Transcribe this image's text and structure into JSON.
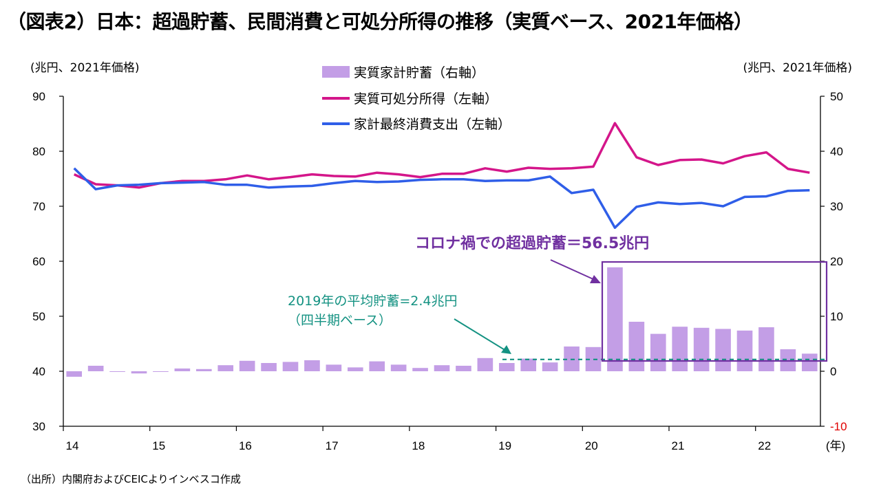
{
  "title": "（図表2）日本：超過貯蓄、民間消費と可処分所得の推移（実質ベース、2021年価格）",
  "source": "（出所）内閣府およびCEICよりインベスコ作成",
  "colors": {
    "bars": "#c39ee6",
    "income": "#d4168a",
    "consumption": "#2f5ee8",
    "highlight": "#7030a0",
    "annotation2019": "#149282",
    "negative_tick": "#e00000"
  },
  "chart_data": {
    "type": "bar+line",
    "title": "（図表2）日本：超過貯蓄、民間消費と可処分所得の推移（実質ベース、2021年価格）",
    "left_unit": "(兆円、2021年価格)",
    "right_unit": "(兆円、2021年価格)",
    "x_unit": "(年)",
    "x_tick_labels": [
      "14",
      "15",
      "16",
      "17",
      "18",
      "19",
      "20",
      "21",
      "22"
    ],
    "left_axis": {
      "ylim": [
        30,
        90
      ],
      "ticks": [
        "30",
        "40",
        "50",
        "60",
        "70",
        "80",
        "90"
      ]
    },
    "right_axis": {
      "ylim": [
        -10,
        50
      ],
      "ticks": [
        "-10",
        "0",
        "10",
        "20",
        "30",
        "40",
        "50"
      ]
    },
    "quarters": [
      "2014Q1",
      "2014Q2",
      "2014Q3",
      "2014Q4",
      "2015Q1",
      "2015Q2",
      "2015Q3",
      "2015Q4",
      "2016Q1",
      "2016Q2",
      "2016Q3",
      "2016Q4",
      "2017Q1",
      "2017Q2",
      "2017Q3",
      "2017Q4",
      "2018Q1",
      "2018Q2",
      "2018Q3",
      "2018Q4",
      "2019Q1",
      "2019Q2",
      "2019Q3",
      "2019Q4",
      "2020Q1",
      "2020Q2",
      "2020Q3",
      "2020Q4",
      "2021Q1",
      "2021Q2",
      "2021Q3",
      "2021Q4",
      "2022Q1",
      "2022Q2",
      "2022Q3"
    ],
    "series": [
      {
        "name": "実質家計貯蓄（右軸）",
        "type": "bar",
        "axis": "right",
        "values": [
          -1.0,
          1.0,
          -0.1,
          -0.4,
          -0.1,
          0.5,
          0.4,
          1.1,
          1.9,
          1.5,
          1.7,
          2.0,
          1.2,
          0.7,
          1.8,
          1.2,
          0.6,
          1.1,
          1.0,
          2.4,
          1.5,
          2.3,
          1.6,
          4.5,
          4.4,
          18.9,
          9.0,
          6.8,
          8.1,
          7.9,
          7.7,
          7.4,
          8.0,
          4.0,
          3.2
        ]
      },
      {
        "name": "実質可処分所得（左軸）",
        "type": "line",
        "axis": "left",
        "values": [
          75.8,
          74.0,
          73.8,
          73.4,
          74.2,
          74.6,
          74.6,
          74.9,
          75.6,
          74.9,
          75.3,
          75.8,
          75.5,
          75.4,
          76.1,
          75.8,
          75.3,
          75.9,
          75.9,
          76.9,
          76.3,
          77.0,
          76.8,
          76.9,
          77.2,
          85.1,
          78.9,
          77.5,
          78.4,
          78.5,
          77.8,
          79.1,
          79.8,
          76.8,
          76.1
        ]
      },
      {
        "name": "家計最終消費支出（左軸）",
        "type": "line",
        "axis": "left",
        "values": [
          76.9,
          73.1,
          73.8,
          73.9,
          74.2,
          74.3,
          74.4,
          73.9,
          73.9,
          73.4,
          73.6,
          73.7,
          74.2,
          74.6,
          74.4,
          74.5,
          74.8,
          74.9,
          74.9,
          74.6,
          74.7,
          74.7,
          75.4,
          72.4,
          73.0,
          66.1,
          69.9,
          70.7,
          70.4,
          70.6,
          70.0,
          71.7,
          71.8,
          72.8,
          72.9
        ]
      }
    ],
    "legend": [
      "実質家計貯蓄（右軸）",
      "実質可処分所得（左軸）",
      "家計最終消費支出（左軸）"
    ],
    "annotations": {
      "avg2019": {
        "line1": "2019年の平均貯蓄=2.4兆円",
        "line2": "（四半期ベース）",
        "value": 2.4
      },
      "excess": {
        "label": "コロナ禍での超過貯蓄＝56.5兆円",
        "value": 56.5
      }
    }
  }
}
